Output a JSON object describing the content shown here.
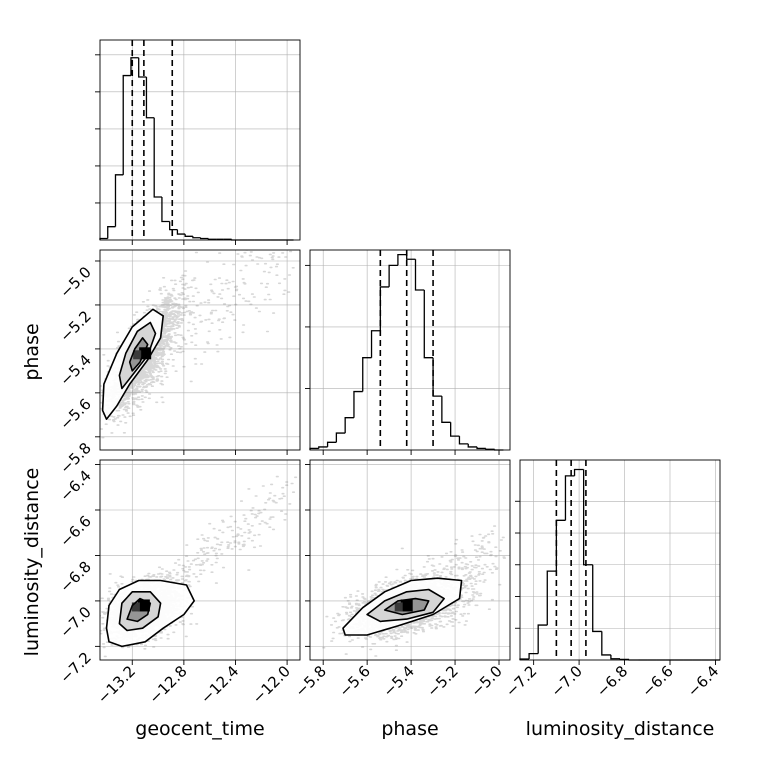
{
  "chart_data": {
    "type": "corner",
    "parameters": [
      "geocent_time",
      "phase",
      "luminosity_distance"
    ],
    "grid": true,
    "quantile_lines": "dashed",
    "colors": {
      "line": "#000000",
      "grid": "#b0b0b0",
      "points": "#6e6e6e",
      "density_max": "#000000"
    },
    "axes": {
      "geocent_time": {
        "label": "geocent_time",
        "range": [
          -13.45,
          -11.9
        ],
        "ticks": [
          -13.2,
          -12.8,
          -12.4,
          -12.0
        ],
        "tick_labels": [
          "−13.2",
          "−12.8",
          "−12.4",
          "−12.0"
        ]
      },
      "phase": {
        "label": "phase",
        "range": [
          -5.86,
          -4.95
        ],
        "ticks": [
          -5.8,
          -5.6,
          -5.4,
          -5.2,
          -5.0
        ],
        "tick_labels": [
          "−5.8",
          "−5.6",
          "−5.4",
          "−5.2",
          "−5.0"
        ]
      },
      "luminosity_distance": {
        "label": "luminosity_distance",
        "range": [
          -7.26,
          -6.38
        ],
        "ticks": [
          -7.2,
          -7.0,
          -6.8,
          -6.6,
          -6.4
        ],
        "tick_labels": [
          "−7.2",
          "−7.0",
          "−6.8",
          "−6.6",
          "−6.4"
        ]
      }
    },
    "marginals": [
      {
        "parameter": "geocent_time",
        "bin_edges": [
          -13.45,
          -13.39,
          -13.33,
          -13.27,
          -13.21,
          -13.15,
          -13.09,
          -13.03,
          -12.97,
          -12.91,
          -12.85,
          -12.79,
          -12.73,
          -12.67,
          -12.61,
          -12.55,
          -12.49,
          -12.43,
          -12.37,
          -12.31,
          -12.25,
          -12.19,
          -12.13,
          -12.07,
          -12.01,
          -11.95
        ],
        "counts": [
          2,
          18,
          88,
          222,
          246,
          220,
          165,
          58,
          25,
          14,
          8,
          5,
          3,
          2,
          1,
          1,
          1,
          0,
          0,
          0,
          0,
          0,
          0,
          0,
          0
        ],
        "y_ticks": [
          50,
          100,
          150,
          200,
          250
        ],
        "ymax": 270,
        "quantiles": [
          -13.2,
          -13.11,
          -12.89
        ]
      },
      {
        "parameter": "phase",
        "bin_edges": [
          -5.86,
          -5.82,
          -5.78,
          -5.74,
          -5.7,
          -5.66,
          -5.62,
          -5.58,
          -5.54,
          -5.5,
          -5.46,
          -5.42,
          -5.38,
          -5.34,
          -5.3,
          -5.26,
          -5.22,
          -5.18,
          -5.14,
          -5.1,
          -5.06,
          -5.02,
          -4.98
        ],
        "counts": [
          2,
          4,
          10,
          22,
          42,
          76,
          120,
          155,
          212,
          240,
          254,
          248,
          208,
          120,
          70,
          36,
          18,
          8,
          4,
          2,
          1,
          0
        ],
        "y_ticks": [
          80,
          160,
          240
        ],
        "ymax": 260,
        "quantiles": [
          -5.54,
          -5.42,
          -5.3
        ]
      },
      {
        "parameter": "luminosity_distance",
        "bin_edges": [
          -7.26,
          -7.22,
          -7.18,
          -7.14,
          -7.1,
          -7.06,
          -7.02,
          -6.98,
          -6.94,
          -6.9,
          -6.86,
          -6.82,
          -6.78,
          -6.74,
          -6.7,
          -6.66,
          -6.62,
          -6.58,
          -6.54,
          -6.5,
          -6.46,
          -6.42,
          -6.38
        ],
        "counts": [
          3,
          20,
          110,
          280,
          440,
          580,
          600,
          300,
          90,
          16,
          4,
          2,
          0,
          0,
          0,
          0,
          0,
          0,
          0,
          0,
          0,
          0
        ],
        "y_ticks": [
          100,
          200,
          300,
          400,
          500
        ],
        "ymax": 630,
        "quantiles": [
          -7.1,
          -7.035,
          -6.97
        ]
      }
    ],
    "joints": [
      {
        "x": "geocent_time",
        "y": "phase",
        "center": [
          -13.12,
          -5.43
        ],
        "spread": [
          0.13,
          0.12
        ],
        "correlation": 0.8,
        "density_max": [
          -13.1,
          -5.42
        ],
        "tail_toward": [
          -12.0,
          -4.98
        ],
        "contour_levels": [
          [
            [
              -13.4,
              -5.72
            ],
            [
              -13.32,
              -5.66
            ],
            [
              -13.22,
              -5.56
            ],
            [
              -13.08,
              -5.45
            ],
            [
              -12.98,
              -5.35
            ],
            [
              -12.96,
              -5.25
            ],
            [
              -13.04,
              -5.22
            ],
            [
              -13.2,
              -5.3
            ],
            [
              -13.32,
              -5.42
            ],
            [
              -13.42,
              -5.56
            ],
            [
              -13.43,
              -5.68
            ]
          ],
          [
            [
              -13.28,
              -5.58
            ],
            [
              -13.2,
              -5.52
            ],
            [
              -13.08,
              -5.43
            ],
            [
              -13.02,
              -5.33
            ],
            [
              -13.06,
              -5.28
            ],
            [
              -13.16,
              -5.32
            ],
            [
              -13.25,
              -5.42
            ],
            [
              -13.3,
              -5.52
            ]
          ],
          [
            [
              -13.2,
              -5.5
            ],
            [
              -13.14,
              -5.46
            ],
            [
              -13.08,
              -5.38
            ],
            [
              -13.12,
              -5.35
            ],
            [
              -13.18,
              -5.4
            ],
            [
              -13.22,
              -5.46
            ]
          ]
        ]
      },
      {
        "x": "geocent_time",
        "y": "luminosity_distance",
        "center": [
          -13.12,
          -7.04
        ],
        "spread": [
          0.13,
          0.06
        ],
        "correlation": 0.35,
        "density_max": [
          -13.11,
          -7.02
        ],
        "tail_toward": [
          -11.95,
          -6.5
        ],
        "contour_levels": [
          [
            [
              -13.4,
              -7.12
            ],
            [
              -13.38,
              -7.02
            ],
            [
              -13.3,
              -6.95
            ],
            [
              -13.15,
              -6.91
            ],
            [
              -12.98,
              -6.91
            ],
            [
              -12.78,
              -6.93
            ],
            [
              -12.72,
              -7.0
            ],
            [
              -12.8,
              -7.06
            ],
            [
              -12.96,
              -7.12
            ],
            [
              -13.1,
              -7.18
            ],
            [
              -13.28,
              -7.2
            ],
            [
              -13.38,
              -7.18
            ]
          ],
          [
            [
              -13.3,
              -7.1
            ],
            [
              -13.28,
              -7.01
            ],
            [
              -13.2,
              -6.96
            ],
            [
              -13.06,
              -6.96
            ],
            [
              -12.98,
              -7.01
            ],
            [
              -13.0,
              -7.07
            ],
            [
              -13.12,
              -7.12
            ],
            [
              -13.24,
              -7.13
            ]
          ],
          [
            [
              -13.24,
              -7.08
            ],
            [
              -13.2,
              -7.02
            ],
            [
              -13.14,
              -6.99
            ],
            [
              -13.06,
              -7.01
            ],
            [
              -13.08,
              -7.06
            ],
            [
              -13.16,
              -7.09
            ]
          ]
        ]
      },
      {
        "x": "phase",
        "y": "luminosity_distance",
        "center": [
          -5.43,
          -7.03
        ],
        "spread": [
          0.12,
          0.06
        ],
        "correlation": 0.45,
        "density_max": [
          -5.42,
          -7.02
        ],
        "tail_toward": [
          -5.0,
          -6.75
        ],
        "contour_levels": [
          [
            [
              -5.71,
              -7.12
            ],
            [
              -5.62,
              -7.03
            ],
            [
              -5.52,
              -6.96
            ],
            [
              -5.4,
              -6.91
            ],
            [
              -5.28,
              -6.9
            ],
            [
              -5.17,
              -6.91
            ],
            [
              -5.18,
              -6.99
            ],
            [
              -5.3,
              -7.06
            ],
            [
              -5.46,
              -7.11
            ],
            [
              -5.6,
              -7.15
            ],
            [
              -5.7,
              -7.15
            ]
          ],
          [
            [
              -5.6,
              -7.06
            ],
            [
              -5.52,
              -7.0
            ],
            [
              -5.42,
              -6.96
            ],
            [
              -5.32,
              -6.95
            ],
            [
              -5.25,
              -6.99
            ],
            [
              -5.3,
              -7.05
            ],
            [
              -5.42,
              -7.08
            ],
            [
              -5.54,
              -7.09
            ]
          ],
          [
            [
              -5.52,
              -7.04
            ],
            [
              -5.46,
              -7.0
            ],
            [
              -5.38,
              -6.99
            ],
            [
              -5.32,
              -7.0
            ],
            [
              -5.34,
              -7.04
            ],
            [
              -5.44,
              -7.06
            ]
          ]
        ]
      }
    ]
  }
}
